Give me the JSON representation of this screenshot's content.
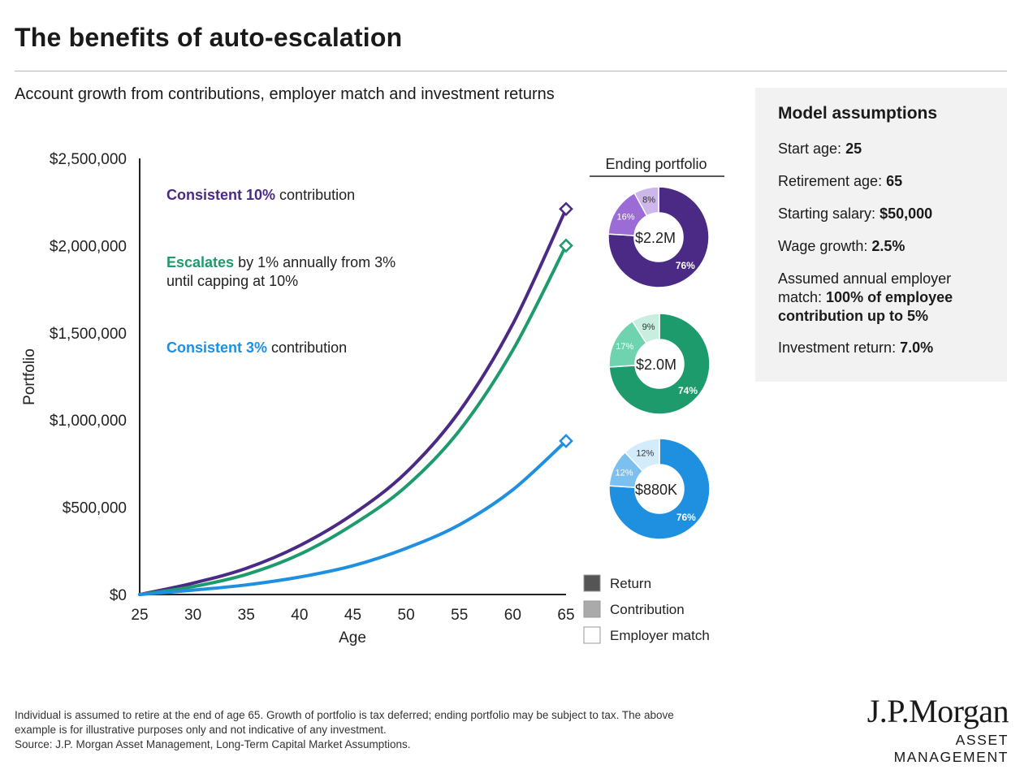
{
  "title": "The benefits of auto-escalation",
  "subtitle": "Account growth from contributions, employer match and investment returns",
  "colors": {
    "purple": "#4b2a85",
    "green": "#1d9b6c",
    "blue": "#1f8fe0",
    "return": "#555555",
    "contribution": "#aaaaaa",
    "employer_match": "#ffffff"
  },
  "chart_data": {
    "type": "line",
    "xlabel": "Age",
    "ylabel": "Portfolio",
    "xlim": [
      25,
      65
    ],
    "ylim": [
      0,
      2500000
    ],
    "x_ticks": [
      25,
      30,
      35,
      40,
      45,
      50,
      55,
      60,
      65
    ],
    "y_ticks": [
      {
        "value": 0,
        "label": "$0"
      },
      {
        "value": 500000,
        "label": "$500,000"
      },
      {
        "value": 1000000,
        "label": "$1,000,000"
      },
      {
        "value": 1500000,
        "label": "$1,500,000"
      },
      {
        "value": 2000000,
        "label": "$2,000,000"
      },
      {
        "value": 2500000,
        "label": "$2,500,000"
      }
    ],
    "x": [
      25,
      30,
      35,
      40,
      45,
      50,
      55,
      60,
      65
    ],
    "series": [
      {
        "key": "consistent10",
        "color": "#4b2a85",
        "label_em": "Consistent 10%",
        "label_rest": " contribution",
        "label_line2": "",
        "values": [
          0,
          65000,
          150000,
          280000,
          460000,
          700000,
          1050000,
          1550000,
          2210000
        ]
      },
      {
        "key": "escalates",
        "color": "#1d9b6c",
        "label_em": "Escalates",
        "label_rest": " by 1% annually from 3%",
        "label_line2": "until capping at 10%",
        "values": [
          0,
          45000,
          115000,
          230000,
          400000,
          620000,
          940000,
          1400000,
          2000000
        ]
      },
      {
        "key": "consistent3",
        "color": "#1f8fe0",
        "label_em": "Consistent 3%",
        "label_rest": " contribution",
        "label_line2": "",
        "values": [
          0,
          25000,
          55000,
          100000,
          165000,
          265000,
          400000,
          600000,
          880000
        ]
      }
    ]
  },
  "ending_portfolio": {
    "header": "Ending portfolio",
    "donuts": [
      {
        "center": "$2.2M",
        "return": 76,
        "contribution": 16,
        "employer_match": 8,
        "labels": {
          "return": "76%",
          "contribution": "16%",
          "employer_match": "8%"
        },
        "shades": {
          "return": "#4b2a85",
          "contribution": "#9b6bd6",
          "employer_match": "#cdb6ea"
        }
      },
      {
        "center": "$2.0M",
        "return": 74,
        "contribution": 17,
        "employer_match": 9,
        "labels": {
          "return": "74%",
          "contribution": "17%",
          "employer_match": "9%"
        },
        "shades": {
          "return": "#1d9b6c",
          "contribution": "#6fd3b0",
          "employer_match": "#c7eedf"
        }
      },
      {
        "center": "$880K",
        "return": 76,
        "contribution": 12,
        "employer_match": 12,
        "labels": {
          "return": "76%",
          "contribution": "12%",
          "employer_match": "12%"
        },
        "shades": {
          "return": "#1f8fe0",
          "contribution": "#7cc0f0",
          "employer_match": "#d3ecfb"
        }
      }
    ],
    "legend": [
      {
        "label": "Return",
        "color": "#555555"
      },
      {
        "label": "Contribution",
        "color": "#aaaaaa"
      },
      {
        "label": "Employer match",
        "color": "#ffffff"
      }
    ]
  },
  "assumptions": {
    "heading": "Model assumptions",
    "items": [
      {
        "label": "Start age: ",
        "value": "25"
      },
      {
        "label": "Retirement age: ",
        "value": "65"
      },
      {
        "label": "Starting salary: ",
        "value": "$50,000"
      },
      {
        "label": "Wage growth: ",
        "value": "2.5%"
      },
      {
        "label": "Assumed annual employer match: ",
        "value": "100% of employee contribution up to 5%"
      },
      {
        "label": "Investment return: ",
        "value": "7.0%"
      }
    ]
  },
  "footnote": {
    "line1": "Individual is assumed to retire at the end of age 65. Growth of portfolio is tax deferred; ending portfolio may be subject to tax. The above",
    "line2": "example is for illustrative purposes only and not indicative of any investment.",
    "line3": "Source: J.P. Morgan Asset Management, Long-Term Capital Market Assumptions."
  },
  "logo": {
    "name": "J.P.Morgan",
    "sub": "ASSET MANAGEMENT"
  }
}
